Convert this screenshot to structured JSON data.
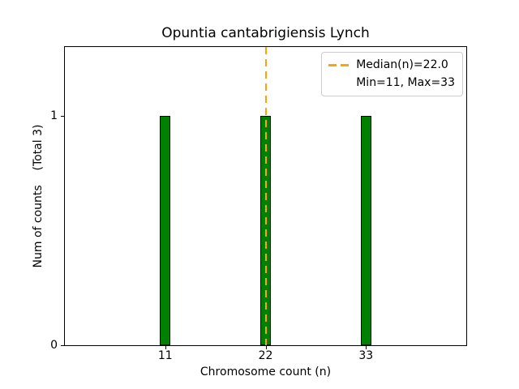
{
  "chart_data": {
    "type": "bar",
    "title": "Opuntia cantabrigiensis Lynch",
    "xlabel": "Chromosome count (n)",
    "ylabel": "Num of counts    (Total 3)",
    "categories": [
      11,
      22,
      33
    ],
    "values": [
      1,
      1,
      1
    ],
    "total_counts": 3,
    "xlim": [
      0,
      44
    ],
    "ylim": [
      0,
      1.3
    ],
    "xticks": [
      "11",
      "22",
      "33"
    ],
    "xtick_values": [
      11,
      22,
      33
    ],
    "yticks": [
      "0",
      "1"
    ],
    "ytick_values": [
      0,
      1
    ],
    "bar_color": "#008000",
    "bar_edge_color": "#000000",
    "bar_width_units": 1.15,
    "median_line": {
      "x": 22.0,
      "color": "#ffa500",
      "style": "dashed",
      "label": "Median(n)=22.0"
    },
    "legend": {
      "position": "upper right",
      "entries": [
        "Median(n)=22.0",
        "Min=11, Max=33"
      ]
    },
    "stats": {
      "median": 22.0,
      "min": 11,
      "max": 33
    },
    "grid": false,
    "background": "#ffffff"
  }
}
